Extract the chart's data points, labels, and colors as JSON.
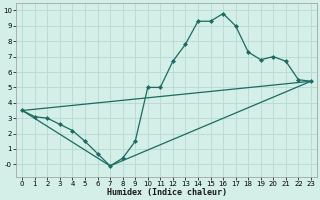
{
  "xlabel": "Humidex (Indice chaleur)",
  "bg_color": "#d4eee8",
  "grid_color": "#b8d8d0",
  "line_color": "#1a6b60",
  "xlim": [
    -0.5,
    23.5
  ],
  "ylim": [
    -0.8,
    10.5
  ],
  "xticks": [
    0,
    1,
    2,
    3,
    4,
    5,
    6,
    7,
    8,
    9,
    10,
    11,
    12,
    13,
    14,
    15,
    16,
    17,
    18,
    19,
    20,
    21,
    22,
    23
  ],
  "yticks": [
    0,
    1,
    2,
    3,
    4,
    5,
    6,
    7,
    8,
    9,
    10
  ],
  "ytick_labels": [
    "-0",
    "1",
    "2",
    "3",
    "4",
    "5",
    "6",
    "7",
    "8",
    "9",
    "10"
  ],
  "line1_x": [
    0,
    1,
    2,
    3,
    4,
    5,
    6,
    7,
    8,
    9,
    10,
    11,
    12,
    13,
    14,
    15,
    16,
    17,
    18,
    19,
    20,
    21,
    22,
    23
  ],
  "line1_y": [
    3.5,
    3.1,
    3.0,
    2.6,
    2.2,
    1.5,
    0.7,
    -0.1,
    0.4,
    1.5,
    5.0,
    5.0,
    6.7,
    7.8,
    9.3,
    9.3,
    9.8,
    9.0,
    7.3,
    6.8,
    7.0,
    6.7,
    5.5,
    5.4
  ],
  "line2_x": [
    0,
    23
  ],
  "line2_y": [
    3.5,
    5.4
  ],
  "line3_x": [
    0,
    7,
    23
  ],
  "line3_y": [
    3.5,
    -0.1,
    5.4
  ]
}
